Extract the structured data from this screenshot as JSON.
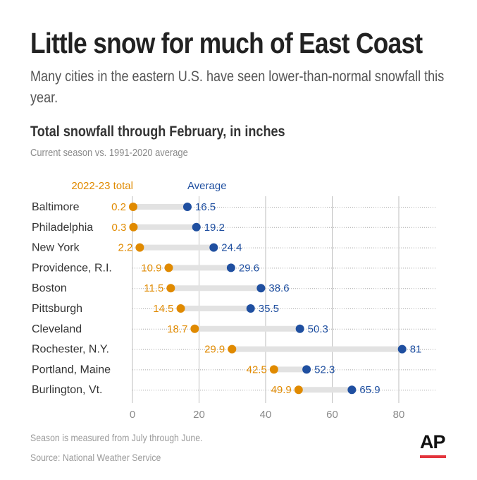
{
  "header": {
    "title": "Little snow for much of East Coast",
    "subtitle": "Many cities in the eastern U.S. have seen lower-than-normal snowfall this year."
  },
  "chart_data": {
    "type": "dumbbell",
    "title": "Total snowfall through February, in inches",
    "subtitle": "Current season vs. 1991-2020 average",
    "xlim": [
      0,
      90
    ],
    "x_ticks": [
      0,
      20,
      40,
      60,
      80
    ],
    "grid": true,
    "series": [
      {
        "name": "2022-23 total",
        "color": "#e08a00",
        "values": [
          0.2,
          0.3,
          2.2,
          10.9,
          11.5,
          14.5,
          18.7,
          29.9,
          42.5,
          49.9
        ]
      },
      {
        "name": "Average",
        "color": "#1f4fa0",
        "values": [
          16.5,
          19.2,
          24.4,
          29.6,
          38.6,
          35.5,
          50.3,
          81,
          52.3,
          65.9
        ]
      }
    ],
    "categories": [
      "Baltimore",
      "Philadelphia",
      "New York",
      "Providence, R.I.",
      "Boston",
      "Pittsburgh",
      "Cleveland",
      "Rochester, N.Y.",
      "Portland, Maine",
      "Burlington, Vt."
    ]
  },
  "footer": {
    "note": "Season is measured from July through June.",
    "source": "Source: National Weather Service",
    "logo": "AP"
  },
  "colors": {
    "current": "#e08a00",
    "average": "#1f4fa0",
    "connector": "#e2e2e2",
    "grid": "#bdbdbd",
    "brand_red": "#e3343c"
  }
}
